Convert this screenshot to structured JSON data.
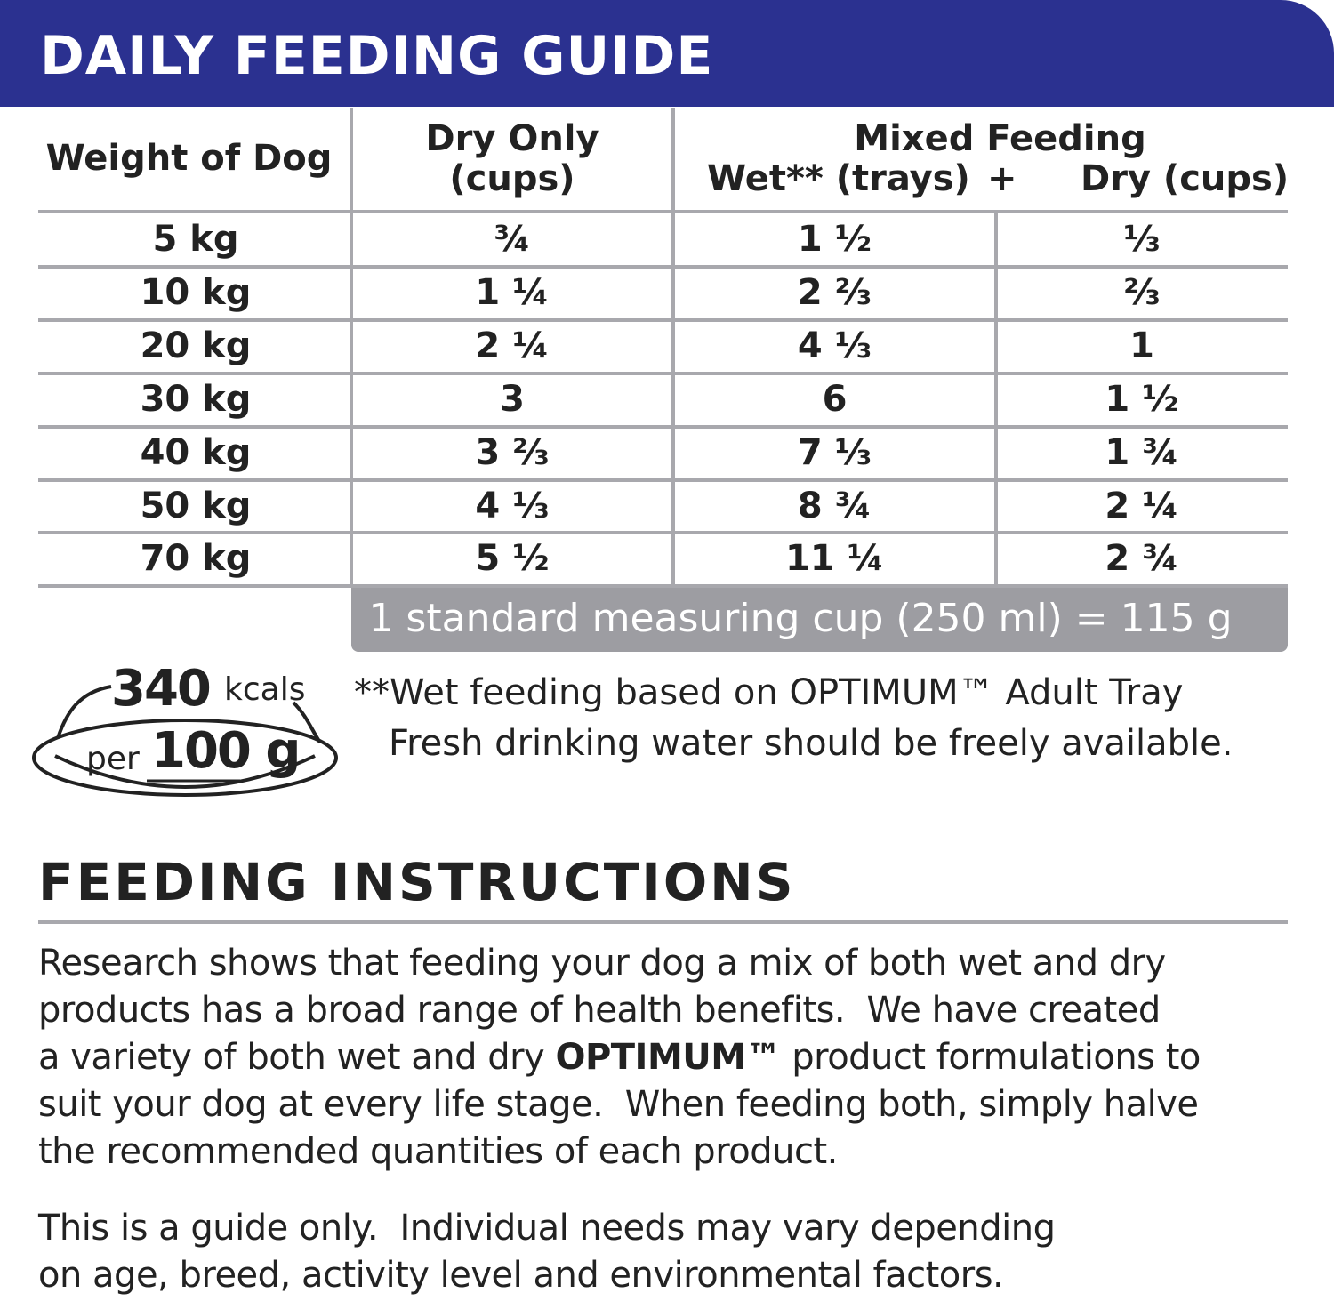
{
  "header": {
    "title": "DAILY FEEDING GUIDE"
  },
  "table": {
    "headers": {
      "weight": "Weight of Dog",
      "dry_line1": "Dry Only",
      "dry_line2": "(cups)",
      "mixed": "Mixed Feeding",
      "mixed_wet": "Wet** (trays)",
      "mixed_plus": "+",
      "mixed_dry": "Dry (cups)"
    },
    "rows": [
      [
        "5 kg",
        "¾",
        "1 ½",
        "⅓"
      ],
      [
        "10 kg",
        "1 ¼",
        "2 ⅔",
        "⅔"
      ],
      [
        "20 kg",
        "2 ¼",
        "4 ⅓",
        "1"
      ],
      [
        "30 kg",
        "3",
        "6",
        "1 ½"
      ],
      [
        "40 kg",
        "3 ⅔",
        "7 ⅓",
        "1 ¾"
      ],
      [
        "50 kg",
        "4 ⅓",
        "8 ¾",
        "2 ¼"
      ],
      [
        "70 kg",
        "5 ½",
        "11 ¼",
        "2 ¾"
      ]
    ],
    "note": "1 standard measuring cup (250 ml) = 115 g"
  },
  "energy": {
    "amount": "340",
    "unit": "kcals",
    "per": "per",
    "portion": "100 g"
  },
  "footnotes": [
    "**Wet feeding based on OPTIMUM™ Adult Tray",
    "Fresh drinking water should be freely available."
  ],
  "instructions": {
    "title": "FEEDING INSTRUCTIONS",
    "paragraph1": {
      "lines": [
        "Research shows that feeding your dog a mix of both wet and dry",
        "products has a broad range of health benefits.  We have created",
        [
          "a variety of both wet and dry ",
          "OPTIMUM™",
          " product formulations to"
        ],
        "suit your dog at every life stage.  When feeding both, simply halve",
        "the recommended quantities of each product."
      ]
    },
    "paragraph2": {
      "lines": [
        "This is a guide only.  Individual needs may vary depending",
        "on age, breed, activity level and environmental factors."
      ]
    }
  }
}
